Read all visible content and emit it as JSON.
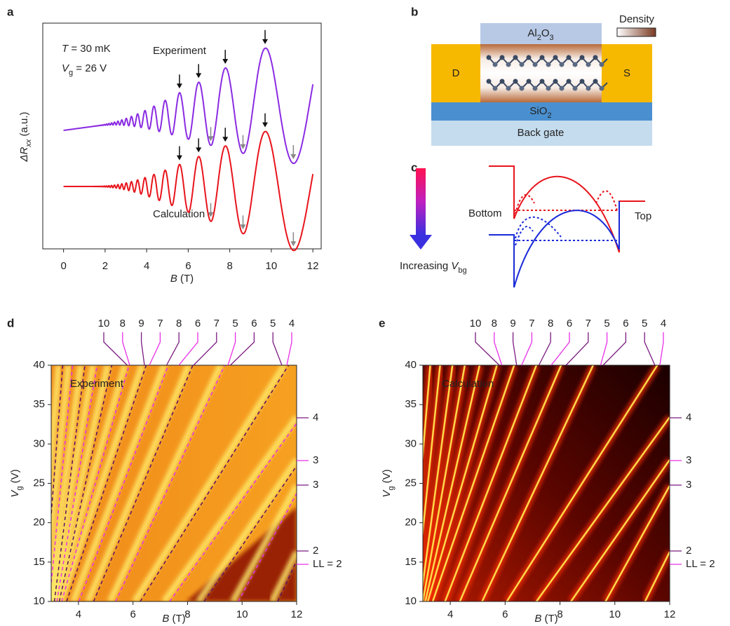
{
  "panel_labels": [
    "a",
    "b",
    "c",
    "d",
    "e"
  ],
  "a": {
    "annotations": {
      "temperature": [
        "T",
        " = 30 mK"
      ],
      "gate": [
        "V",
        "g",
        " = 26 V"
      ]
    },
    "experiment": {
      "name": "Experiment",
      "color": "#8a2be2"
    },
    "calculation": {
      "name": "Calculation",
      "color": "#e8141c"
    },
    "ylabel": [
      "ΔR",
      "xx",
      " (a.u.)"
    ],
    "xlabel": [
      "B",
      " (T)"
    ],
    "xlim": [
      -1,
      12.4
    ],
    "xticks": [
      0,
      2,
      4,
      6,
      8,
      10,
      12
    ]
  },
  "b": {
    "drain": "D",
    "source": "S",
    "oxide": [
      "Al",
      "2",
      "O",
      "3"
    ],
    "substrate": [
      "SiO",
      "2"
    ],
    "gate": "Back gate",
    "density": "Density"
  },
  "c": {
    "bottom": "Bottom",
    "top": "Top",
    "arrow_label": [
      "Increasing ",
      "V",
      "bg"
    ]
  },
  "d": {
    "inset": "Experiment",
    "xlim": [
      3,
      12
    ],
    "ylim": [
      10,
      40
    ],
    "xticks": [
      4,
      6,
      8,
      10,
      12
    ],
    "yticks": [
      10,
      15,
      20,
      25,
      30,
      35,
      40
    ],
    "xlabel": [
      "B",
      " (T)"
    ],
    "ylabel": [
      "V",
      "g",
      " (V)"
    ],
    "top_labels": [
      {
        "text": "10",
        "color": "#7a1a80"
      },
      {
        "text": "8",
        "color": "#e830e8"
      },
      {
        "text": "9",
        "color": "#7a1a80"
      },
      {
        "text": "7",
        "color": "#e830e8"
      },
      {
        "text": "8",
        "color": "#7a1a80"
      },
      {
        "text": "6",
        "color": "#e830e8"
      },
      {
        "text": "7",
        "color": "#7a1a80"
      },
      {
        "text": "5",
        "color": "#e830e8"
      },
      {
        "text": "6",
        "color": "#7a1a80"
      },
      {
        "text": "5",
        "color": "#7a1a80"
      },
      {
        "text": "4",
        "color": "#e830e8"
      }
    ],
    "right_labels": [
      {
        "text": "4",
        "color": "#7a1a80"
      },
      {
        "text": "3",
        "color": "#e830e8"
      },
      {
        "text": "3",
        "color": "#7a1a80"
      },
      {
        "text": "2",
        "color": "#7a1a80"
      },
      {
        "text": "LL = 2",
        "color": "#e830e8"
      }
    ]
  },
  "e": {
    "inset": "Calculation",
    "xlim": [
      3,
      12
    ],
    "ylim": [
      10,
      40
    ],
    "xticks": [
      4,
      6,
      8,
      10,
      12
    ],
    "yticks": [
      10,
      15,
      20,
      25,
      30,
      35,
      40
    ],
    "xlabel": [
      "B",
      " (T)"
    ],
    "ylabel": [
      "V",
      "g",
      " (V)"
    ],
    "top_labels": [
      {
        "text": "10",
        "color": "#7a1a80"
      },
      {
        "text": "8",
        "color": "#e830e8"
      },
      {
        "text": "9",
        "color": "#7a1a80"
      },
      {
        "text": "7",
        "color": "#e830e8"
      },
      {
        "text": "8",
        "color": "#7a1a80"
      },
      {
        "text": "6",
        "color": "#e830e8"
      },
      {
        "text": "7",
        "color": "#7a1a80"
      },
      {
        "text": "5",
        "color": "#e830e8"
      },
      {
        "text": "6",
        "color": "#7a1a80"
      },
      {
        "text": "5",
        "color": "#7a1a80"
      },
      {
        "text": "4",
        "color": "#e830e8"
      }
    ],
    "right_labels": [
      {
        "text": "4",
        "color": "#7a1a80"
      },
      {
        "text": "3",
        "color": "#e830e8"
      },
      {
        "text": "3",
        "color": "#7a1a80"
      },
      {
        "text": "2",
        "color": "#7a1a80"
      },
      {
        "text": "LL = 2",
        "color": "#e830e8"
      }
    ]
  }
}
